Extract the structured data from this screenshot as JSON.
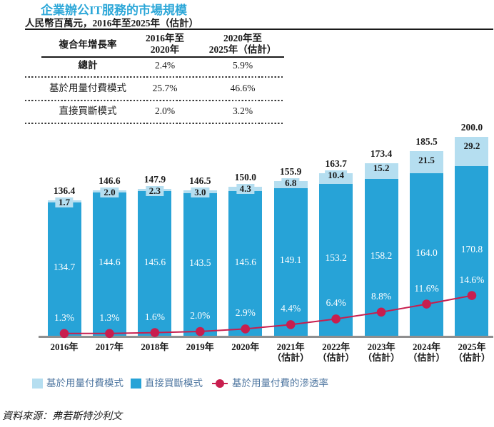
{
  "title": "企業辦公IT服務的市場規模",
  "subtitle": "人民幣百萬元，2016年至2025年（估計）",
  "table": {
    "header": {
      "col1": "複合年增長率",
      "col2_line1": "2016年至",
      "col2_line2": "2020年",
      "col3_line1": "2020年至",
      "col3_line2": "2025年（估計）"
    },
    "rows": [
      {
        "label": "總計",
        "v1": "2.4%",
        "v2": "5.9%",
        "emphasis": true
      },
      {
        "label": "基於用量付費模式",
        "v1": "25.7%",
        "v2": "46.6%",
        "emphasis": false
      },
      {
        "label": "直接買斷模式",
        "v1": "2.0%",
        "v2": "3.2%",
        "emphasis": false
      }
    ]
  },
  "chart_data": {
    "type": "bar",
    "stacked": true,
    "title": "企業辦公IT服務的市場規模",
    "unit": "人民幣百萬元",
    "categories": [
      {
        "line1": "2016年",
        "line2": ""
      },
      {
        "line1": "2017年",
        "line2": ""
      },
      {
        "line1": "2018年",
        "line2": ""
      },
      {
        "line1": "2019年",
        "line2": ""
      },
      {
        "line1": "2020年",
        "line2": ""
      },
      {
        "line1": "2021年",
        "line2": "（估計）"
      },
      {
        "line1": "2022年",
        "line2": "（估計）"
      },
      {
        "line1": "2023年",
        "line2": "（估計）"
      },
      {
        "line1": "2024年",
        "line2": "（估計）"
      },
      {
        "line1": "2025年",
        "line2": "（估計）"
      }
    ],
    "totals": [
      136.4,
      146.6,
      147.9,
      146.5,
      150.0,
      155.9,
      163.7,
      173.4,
      185.5,
      200.0
    ],
    "series": [
      {
        "name": "基於用量付費模式",
        "role": "stack-top",
        "color": "#b5def0",
        "values": [
          1.7,
          2.0,
          2.3,
          3.0,
          4.3,
          6.8,
          10.4,
          15.2,
          21.5,
          29.2
        ]
      },
      {
        "name": "直接買斷模式",
        "role": "stack-bottom",
        "color": "#27a3d7",
        "values": [
          134.7,
          144.6,
          145.6,
          143.5,
          145.6,
          149.1,
          153.2,
          158.2,
          164.0,
          170.8
        ]
      },
      {
        "name": "基於用量付費的滲透率",
        "role": "line",
        "color": "#c81e4e",
        "values_percent": [
          1.3,
          1.3,
          1.6,
          2.0,
          2.9,
          4.4,
          6.4,
          8.8,
          11.6,
          14.6
        ]
      }
    ],
    "ylim": [
      0,
      200
    ],
    "legend_position": "bottom",
    "grid": false
  },
  "legend": [
    {
      "label": "基於用量付費模式",
      "swatch": "square",
      "color": "#b5def0"
    },
    {
      "label": "直接買斷模式",
      "swatch": "square",
      "color": "#27a3d7"
    },
    {
      "label": "基於用量付費的滲透率",
      "swatch": "line-dot",
      "color": "#c81e4e"
    }
  ],
  "source": "資料來源：弗若斯特沙利文",
  "colors": {
    "title": "#2ca7d8",
    "usage_segment": "#b5def0",
    "direct_segment": "#27a3d7",
    "penetration_line": "#c81e4e",
    "legend_text": "#4e76a0",
    "text": "#1a1a1a",
    "axis": "#8f8f8f"
  }
}
